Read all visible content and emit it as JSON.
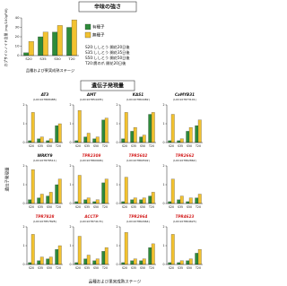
{
  "chart_data": [
    {
      "type": "bar",
      "title": "辛味の強さ",
      "y_label": "カプサイシノイド含量 (mg/100gFW)",
      "x_label": "品種および果実成熟ステージ",
      "categories": [
        "S20",
        "S35",
        "S50",
        "T20"
      ],
      "series": [
        {
          "name": "有種子",
          "color": "#2e8b3a",
          "values": [
            3,
            20,
            25,
            30
          ]
        },
        {
          "name": "無種子",
          "color": "#f2c230",
          "values": [
            15,
            25,
            32,
            38
          ]
        }
      ],
      "ylim": [
        0,
        40
      ],
      "yticks": [
        0,
        10,
        20,
        30,
        40
      ],
      "notes": [
        "S20:ししとう 開花20日後",
        "S35:ししとう 開花35日後",
        "S50:ししとう 開花50日後",
        "T20:鷹の爪 開花20日後"
      ]
    },
    {
      "type": "bar",
      "title": "AT3",
      "subtitle": "(LOC107868488)",
      "title_color": "#111",
      "categories": [
        "S20",
        "S35",
        "S50",
        "T20"
      ],
      "series": [
        {
          "color": "#2e8b3a",
          "values": [
            0.1,
            0.2,
            0.1,
            0.9
          ]
        },
        {
          "color": "#f2c230",
          "values": [
            1.6,
            0.3,
            0.2,
            1.0
          ]
        }
      ],
      "ylim": [
        0,
        2
      ],
      "yticks": [
        0,
        1,
        2
      ]
    },
    {
      "type": "bar",
      "title": "AMT",
      "subtitle": "(LOC107854435)",
      "title_color": "#111",
      "categories": [
        "S20",
        "S35",
        "S50",
        "T20"
      ],
      "series": [
        {
          "color": "#2e8b3a",
          "values": [
            0.1,
            0.3,
            0.2,
            1.2
          ]
        },
        {
          "color": "#f2c230",
          "values": [
            1.7,
            0.5,
            0.3,
            1.3
          ]
        }
      ],
      "ylim": [
        0,
        2
      ],
      "yticks": [
        0,
        1,
        2
      ]
    },
    {
      "type": "bar",
      "title": "KAS1",
      "subtitle": "(LOC107864482)",
      "title_color": "#111",
      "categories": [
        "S20",
        "S35",
        "S50",
        "T20"
      ],
      "series": [
        {
          "color": "#2e8b3a",
          "values": [
            0.2,
            0.6,
            0.3,
            1.5
          ]
        },
        {
          "color": "#f2c230",
          "values": [
            1.6,
            0.8,
            0.4,
            1.6
          ]
        }
      ],
      "ylim": [
        0,
        2
      ],
      "yticks": [
        0,
        1,
        2
      ]
    },
    {
      "type": "bar",
      "title": "CaMYB31",
      "subtitle": "(LOC107873101)",
      "title_color": "#111",
      "categories": [
        "S20",
        "S35",
        "S50",
        "T20"
      ],
      "series": [
        {
          "color": "#2e8b3a",
          "values": [
            0.1,
            0.1,
            0.6,
            0.9
          ]
        },
        {
          "color": "#f2c230",
          "values": [
            1.5,
            0.2,
            0.8,
            1.2
          ]
        }
      ],
      "ylim": [
        0,
        2
      ],
      "yticks": [
        0,
        1,
        2
      ]
    },
    {
      "type": "bar",
      "title": "WRKY9",
      "subtitle": "(LOC107878511)",
      "title_color": "#111",
      "categories": [
        "S20",
        "S35",
        "S50",
        "T20"
      ],
      "series": [
        {
          "color": "#2e8b3a",
          "values": [
            0.2,
            0.3,
            0.4,
            1.0
          ]
        },
        {
          "color": "#f2c230",
          "values": [
            1.8,
            0.5,
            0.6,
            1.3
          ]
        }
      ],
      "ylim": [
        0,
        2
      ],
      "yticks": [
        0,
        1,
        2
      ]
    },
    {
      "type": "bar",
      "title": "TPR2309",
      "subtitle": "(LOC107860906)",
      "title_color": "#d42020",
      "categories": [
        "S20",
        "S35",
        "S50",
        "T20"
      ],
      "series": [
        {
          "color": "#2e8b3a",
          "values": [
            0.1,
            0.2,
            0.1,
            1.1
          ]
        },
        {
          "color": "#f2c230",
          "values": [
            1.5,
            0.3,
            0.2,
            1.3
          ]
        }
      ],
      "ylim": [
        0,
        2
      ],
      "yticks": [
        0,
        1,
        2
      ]
    },
    {
      "type": "bar",
      "title": "TPR5602",
      "subtitle": "(LOC107860502)",
      "title_color": "#d42020",
      "categories": [
        "S20",
        "S35",
        "S50",
        "T20"
      ],
      "series": [
        {
          "color": "#2e8b3a",
          "values": [
            0.1,
            0.2,
            0.2,
            0.4
          ]
        },
        {
          "color": "#f2c230",
          "values": [
            1.4,
            0.3,
            0.3,
            0.6
          ]
        }
      ],
      "ylim": [
        0,
        2
      ],
      "yticks": [
        0,
        1,
        2
      ]
    },
    {
      "type": "bar",
      "title": "TPR2662",
      "subtitle": "(LOC107862862)",
      "title_color": "#d42020",
      "categories": [
        "S20",
        "S35",
        "S50",
        "T20"
      ],
      "series": [
        {
          "color": "#2e8b3a",
          "values": [
            0.1,
            0.2,
            0.1,
            0.3
          ]
        },
        {
          "color": "#f2c230",
          "values": [
            1.3,
            0.4,
            0.3,
            0.5
          ]
        }
      ],
      "ylim": [
        0,
        2
      ],
      "yticks": [
        0,
        1,
        2
      ]
    },
    {
      "type": "bar",
      "title": "TPR7828",
      "subtitle": "(LOC107857828)",
      "title_color": "#d42020",
      "categories": [
        "S20",
        "S35",
        "S50",
        "T20"
      ],
      "series": [
        {
          "color": "#2e8b3a",
          "values": [
            0.1,
            0.2,
            0.3,
            0.8
          ]
        },
        {
          "color": "#f2c230",
          "values": [
            1.6,
            0.4,
            0.4,
            1.0
          ]
        }
      ],
      "ylim": [
        0,
        2
      ],
      "yticks": [
        0,
        1,
        2
      ]
    },
    {
      "type": "bar",
      "title": "ACCTP",
      "subtitle": "(LOC107874174)",
      "title_color": "#d42020",
      "categories": [
        "S20",
        "S35",
        "S50",
        "T20"
      ],
      "series": [
        {
          "color": "#2e8b3a",
          "values": [
            0.1,
            0.3,
            0.2,
            0.7
          ]
        },
        {
          "color": "#f2c230",
          "values": [
            1.5,
            0.5,
            0.3,
            0.9
          ]
        }
      ],
      "ylim": [
        0,
        2
      ],
      "yticks": [
        0,
        1,
        2
      ]
    },
    {
      "type": "bar",
      "title": "TPR2964",
      "subtitle": "(LOC107862964)",
      "title_color": "#d42020",
      "categories": [
        "S20",
        "S35",
        "S50",
        "T20"
      ],
      "series": [
        {
          "color": "#2e8b3a",
          "values": [
            0.1,
            0.2,
            0.2,
            0.9
          ]
        },
        {
          "color": "#f2c230",
          "values": [
            1.7,
            0.3,
            0.3,
            1.1
          ]
        }
      ],
      "ylim": [
        0,
        2
      ],
      "yticks": [
        0,
        1,
        2
      ]
    },
    {
      "type": "bar",
      "title": "TPR4623",
      "subtitle": "(LOC107864623)",
      "title_color": "#d42020",
      "categories": [
        "S20",
        "S35",
        "S50",
        "T20"
      ],
      "series": [
        {
          "color": "#2e8b3a",
          "values": [
            0.1,
            0.1,
            0.2,
            0.6
          ]
        },
        {
          "color": "#f2c230",
          "values": [
            1.6,
            0.2,
            0.3,
            0.8
          ]
        }
      ],
      "ylim": [
        0,
        2
      ],
      "yticks": [
        0,
        1,
        2
      ]
    }
  ],
  "gene_section": {
    "title": "遺伝子発現量",
    "y_label": "遺伝子発現量",
    "x_label": "品種および果実成熟ステージ"
  }
}
